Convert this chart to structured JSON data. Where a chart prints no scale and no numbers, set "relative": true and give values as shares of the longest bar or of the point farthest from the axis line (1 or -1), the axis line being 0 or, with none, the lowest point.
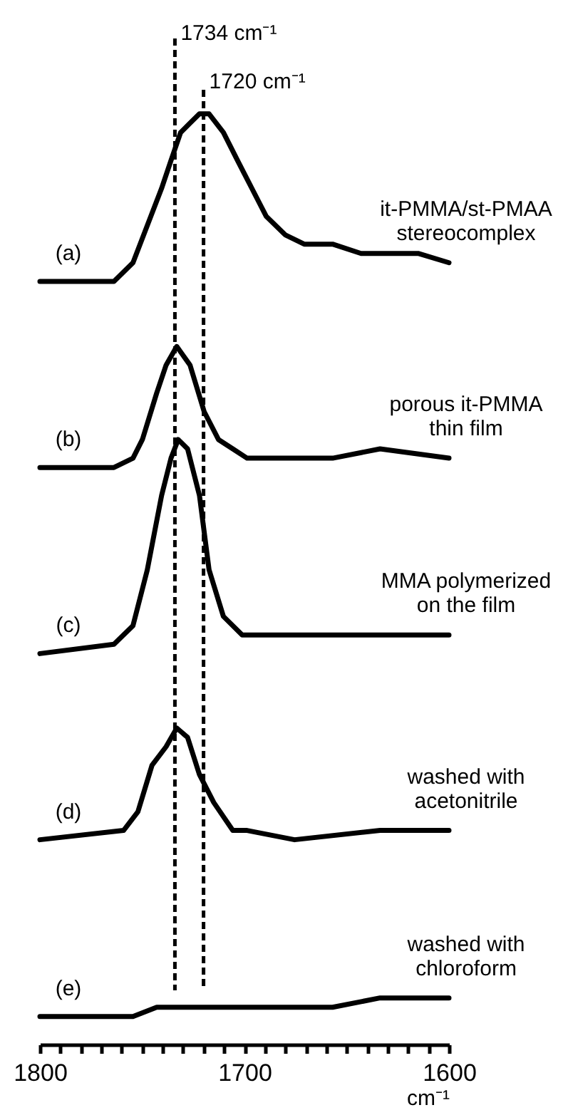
{
  "chart_data": {
    "type": "line",
    "relative": true,
    "xlabel": "cm⁻¹",
    "xlim": [
      1800,
      1600
    ],
    "xticks": [
      1800,
      {
        "value": 1790,
        "label": null
      },
      {
        "value": 1780,
        "label": null
      },
      {
        "value": 1770,
        "label": null
      },
      {
        "value": 1760,
        "label": null
      },
      {
        "value": 1750,
        "label": null
      },
      {
        "value": 1740,
        "label": null
      },
      {
        "value": 1730,
        "label": null
      },
      {
        "value": 1720,
        "label": null
      },
      {
        "value": 1710,
        "label": null
      },
      1700,
      {
        "value": 1690,
        "label": null
      },
      {
        "value": 1680,
        "label": null
      },
      {
        "value": 1670,
        "label": null
      },
      {
        "value": 1660,
        "label": null
      },
      {
        "value": 1650,
        "label": null
      },
      {
        "value": 1640,
        "label": null
      },
      {
        "value": 1630,
        "label": null
      },
      {
        "value": 1620,
        "label": null
      },
      {
        "value": 1610,
        "label": null
      },
      1600
    ],
    "series": [
      {
        "color": "#000000",
        "x": [
          1800,
          1777.7,
          1763.8,
          1754.5,
          1747.5,
          1740.5,
          1735.9,
          1731.2,
          1726.6,
          1722,
          1717.3,
          1710.3,
          1703.4,
          1696.4,
          1689.4,
          1680.1,
          1670.8,
          1656.9,
          1643,
          1629,
          1615.1,
          1600
        ],
        "values": [
          0.82,
          0.82,
          0.82,
          0.84,
          0.88,
          0.92,
          0.95,
          0.98,
          0.99,
          1.0,
          1.0,
          0.98,
          0.95,
          0.92,
          0.89,
          0.87,
          0.86,
          0.86,
          0.85,
          0.85,
          0.85,
          0.84
        ]
      },
      {
        "color": "#000000",
        "x": [
          1800,
          1763.8,
          1754.5,
          1749.9,
          1742.9,
          1738.3,
          1733.1,
          1726.6,
          1719.7,
          1712.7,
          1705.7,
          1698.7,
          1680.1,
          1656.9,
          1633.7,
          1600
        ],
        "values": [
          0.62,
          0.62,
          0.63,
          0.65,
          0.7,
          0.73,
          0.75,
          0.73,
          0.68,
          0.65,
          0.64,
          0.63,
          0.63,
          0.63,
          0.64,
          0.63
        ]
      },
      {
        "color": "#000000",
        "x": [
          1800,
          1763.8,
          1754.5,
          1747.5,
          1740.5,
          1735.9,
          1732.4,
          1727.8,
          1722,
          1717.3,
          1710.3,
          1701.1,
          1680.1,
          1656.9,
          1633.7,
          1600
        ],
        "values": [
          0.42,
          0.43,
          0.45,
          0.51,
          0.59,
          0.63,
          0.65,
          0.64,
          0.59,
          0.51,
          0.46,
          0.44,
          0.44,
          0.44,
          0.44,
          0.44
        ]
      },
      {
        "color": "#000000",
        "x": [
          1800,
          1759.1,
          1752.1,
          1745.2,
          1738.3,
          1733.1,
          1727.8,
          1722,
          1715,
          1705.7,
          1698.7,
          1675.5,
          1633.7,
          1600
        ],
        "values": [
          0.22,
          0.23,
          0.25,
          0.3,
          0.32,
          0.34,
          0.33,
          0.29,
          0.26,
          0.23,
          0.23,
          0.22,
          0.23,
          0.23
        ]
      },
      {
        "color": "#000000",
        "x": [
          1800,
          1773.1,
          1754.5,
          1742.9,
          1726.6,
          1703.4,
          1680.1,
          1656.9,
          1633.7,
          1600
        ],
        "values": [
          0.03,
          0.03,
          0.03,
          0.04,
          0.04,
          0.04,
          0.04,
          0.04,
          0.05,
          0.05
        ]
      }
    ],
    "ref_lines": [
      {
        "axis": "x",
        "value": 1734,
        "label": "1734 cm⁻¹",
        "line_style": "dashed",
        "color": "#000000"
      },
      {
        "axis": "x",
        "value": 1720,
        "label": "1720 cm⁻¹",
        "line_style": "dashed",
        "color": "#000000"
      }
    ],
    "annotations": [
      "(a)",
      "it-PMMA/st-PMAA\nstereocomplex",
      "(b)",
      "porous it-PMMA\nthin film",
      "(c)",
      "MMA polymerized\non the film",
      "(d)",
      "washed with\nacetonitrile",
      "(e)",
      "washed with\nchloroform"
    ]
  }
}
